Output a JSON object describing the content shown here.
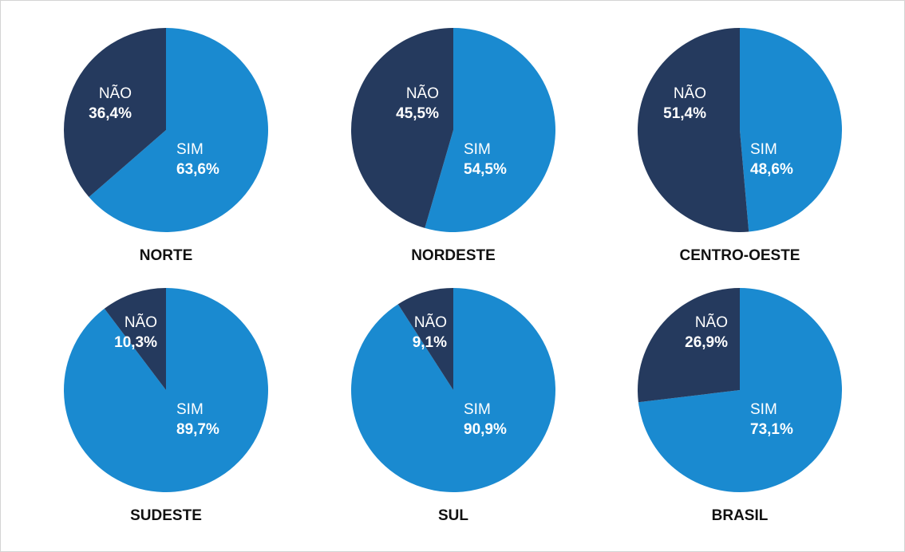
{
  "chart_data": [
    {
      "type": "pie",
      "title": "NORTE",
      "categories": [
        "SIM",
        "NÃO"
      ],
      "values": [
        63.6,
        36.4
      ],
      "value_labels": [
        "63,6%",
        "36,4%"
      ],
      "colors": [
        "#1a8ad0",
        "#253a5e"
      ]
    },
    {
      "type": "pie",
      "title": "NORDESTE",
      "categories": [
        "SIM",
        "NÃO"
      ],
      "values": [
        54.5,
        45.5
      ],
      "value_labels": [
        "54,5%",
        "45,5%"
      ],
      "colors": [
        "#1a8ad0",
        "#253a5e"
      ]
    },
    {
      "type": "pie",
      "title": "CENTRO-OESTE",
      "categories": [
        "SIM",
        "NÃO"
      ],
      "values": [
        48.6,
        51.4
      ],
      "value_labels": [
        "48,6%",
        "51,4%"
      ],
      "colors": [
        "#1a8ad0",
        "#253a5e"
      ]
    },
    {
      "type": "pie",
      "title": "SUDESTE",
      "categories": [
        "SIM",
        "NÃO"
      ],
      "values": [
        89.7,
        10.3
      ],
      "value_labels": [
        "89,7%",
        "10,3%"
      ],
      "colors": [
        "#1a8ad0",
        "#253a5e"
      ]
    },
    {
      "type": "pie",
      "title": "SUL",
      "categories": [
        "SIM",
        "NÃO"
      ],
      "values": [
        90.9,
        9.1
      ],
      "value_labels": [
        "90,9%",
        "9,1%"
      ],
      "colors": [
        "#1a8ad0",
        "#253a5e"
      ]
    },
    {
      "type": "pie",
      "title": "BRASIL",
      "categories": [
        "SIM",
        "NÃO"
      ],
      "values": [
        73.1,
        26.9
      ],
      "value_labels": [
        "73,1%",
        "26,9%"
      ],
      "colors": [
        "#1a8ad0",
        "#253a5e"
      ]
    }
  ]
}
